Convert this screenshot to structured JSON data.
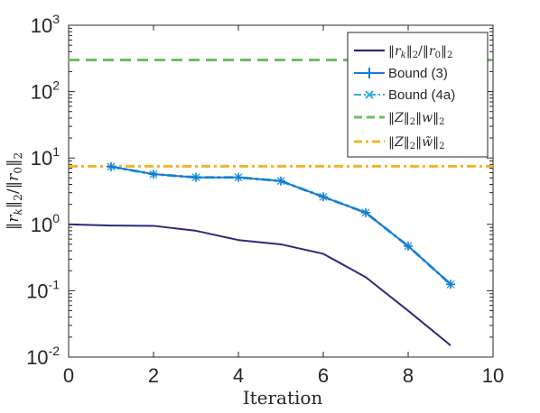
{
  "chart_data": {
    "type": "line",
    "xlabel": "Iteration",
    "ylabel": "‖r_k‖₂/‖r₀‖₂",
    "xlim": [
      0,
      10
    ],
    "ylim": [
      0.01,
      1000
    ],
    "yscale": "log",
    "grid": false,
    "legend_position": "top-right",
    "x_ticks": [
      "0",
      "2",
      "4",
      "6",
      "8",
      "10"
    ],
    "y_ticks": [
      {
        "base": "10",
        "exp": "-2",
        "value": 0.01
      },
      {
        "base": "10",
        "exp": "-1",
        "value": 0.1
      },
      {
        "base": "10",
        "exp": "0",
        "value": 1
      },
      {
        "base": "10",
        "exp": "1",
        "value": 10
      },
      {
        "base": "10",
        "exp": "2",
        "value": 100
      },
      {
        "base": "10",
        "exp": "3",
        "value": 1000
      }
    ],
    "series": [
      {
        "name": "‖r_k‖₂/‖r₀‖₂",
        "style": "solid",
        "marker": "none",
        "color": "#2b2a7a",
        "x": [
          0,
          1,
          2,
          3,
          4,
          5,
          6,
          7,
          8,
          9
        ],
        "y": [
          1.0,
          0.96,
          0.95,
          0.8,
          0.58,
          0.5,
          0.36,
          0.16,
          0.05,
          0.015
        ]
      },
      {
        "name": "Bound (3)",
        "style": "solid",
        "marker": "plus",
        "color": "#1b78d0",
        "x": [
          1,
          2,
          3,
          4,
          5,
          6,
          7,
          8,
          9
        ],
        "y": [
          7.4,
          5.7,
          5.1,
          5.1,
          4.5,
          2.6,
          1.5,
          0.47,
          0.125
        ]
      },
      {
        "name": "Bound (4a)",
        "style": "dashdot",
        "marker": "x",
        "color": "#2fb1d9",
        "x": [
          1,
          2,
          3,
          4,
          5,
          6,
          7,
          8,
          9
        ],
        "y": [
          7.4,
          5.7,
          5.1,
          5.1,
          4.5,
          2.6,
          1.5,
          0.47,
          0.125
        ]
      },
      {
        "name": "‖Z‖₂‖w‖₂",
        "style": "dashed",
        "marker": "none",
        "color": "#6bbf5e",
        "x": [
          0,
          10
        ],
        "y": [
          300,
          300
        ]
      },
      {
        "name": "‖Z‖₂‖w̃‖₂",
        "style": "dashdot",
        "marker": "none",
        "color": "#f0b32b",
        "x": [
          0,
          10
        ],
        "y": [
          7.5,
          7.5
        ]
      }
    ]
  }
}
